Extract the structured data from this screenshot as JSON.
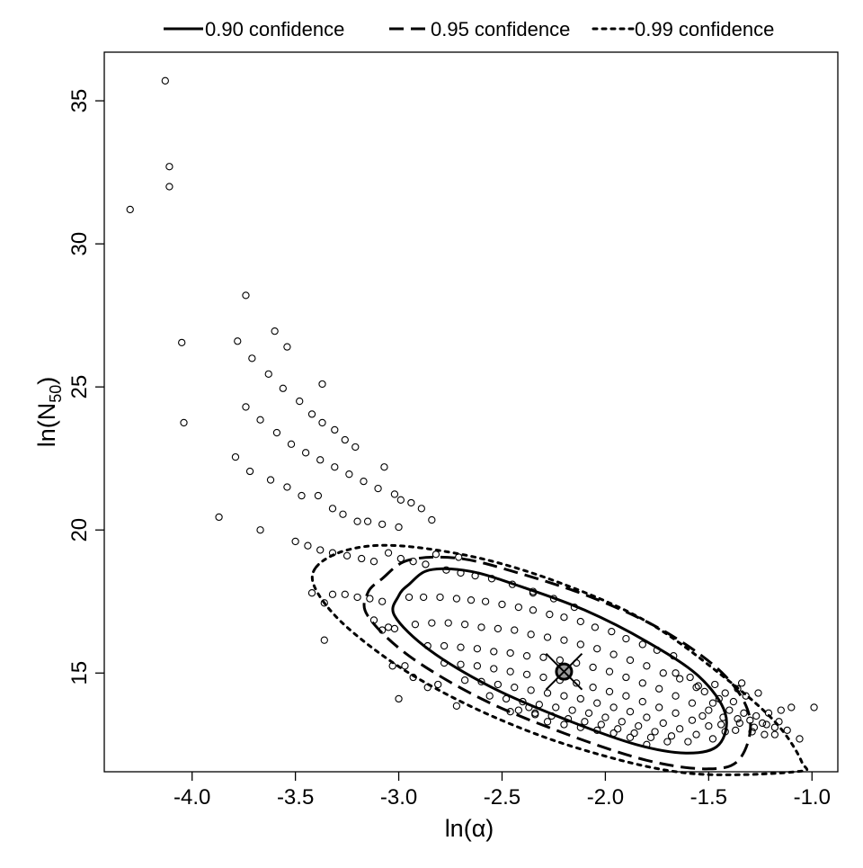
{
  "chart_data": {
    "type": "scatter",
    "x_label": "ln(α)",
    "y_label_base": "ln(N",
    "y_label_sub": "50",
    "y_label_close": ")",
    "xlim": [
      -4.425,
      -0.875
    ],
    "ylim": [
      11.55,
      36.7
    ],
    "x_ticks": [
      -4.0,
      -3.5,
      -3.0,
      -2.5,
      -2.0,
      -1.5,
      -1.0
    ],
    "x_tick_labels": [
      "-4.0",
      "-3.5",
      "-3.0",
      "-2.5",
      "-2.0",
      "-1.5",
      "-1.0"
    ],
    "y_ticks": [
      15,
      20,
      25,
      30,
      35
    ],
    "y_tick_labels": [
      "15",
      "20",
      "25",
      "30",
      "35"
    ],
    "legend_position": "top",
    "legend": [
      {
        "label": "0.90 confidence",
        "style": "solid"
      },
      {
        "label": "0.95 confidence",
        "style": "dashed"
      },
      {
        "label": "0.99 confidence",
        "style": "dotted"
      }
    ],
    "mle_point": {
      "x": -2.2,
      "y": 15.05
    },
    "confidence_regions": [
      {
        "level": 0.9,
        "style": "solid",
        "center": [
          -2.2,
          15.05
        ],
        "points": [
          [
            -2.95,
            18.1
          ],
          [
            -2.85,
            18.6
          ],
          [
            -2.65,
            18.55
          ],
          [
            -2.4,
            18.0
          ],
          [
            -2.1,
            17.2
          ],
          [
            -1.8,
            16.1
          ],
          [
            -1.55,
            14.9
          ],
          [
            -1.42,
            13.6
          ],
          [
            -1.45,
            12.5
          ],
          [
            -1.6,
            12.2
          ],
          [
            -1.85,
            12.5
          ],
          [
            -2.2,
            13.4
          ],
          [
            -2.55,
            14.5
          ],
          [
            -2.85,
            15.8
          ],
          [
            -3.02,
            17.0
          ],
          [
            -3.0,
            17.7
          ]
        ]
      },
      {
        "level": 0.95,
        "style": "dashed",
        "center": [
          -2.2,
          15.05
        ],
        "points": [
          [
            -3.08,
            18.3
          ],
          [
            -2.95,
            18.95
          ],
          [
            -2.7,
            19.0
          ],
          [
            -2.4,
            18.45
          ],
          [
            -2.05,
            17.6
          ],
          [
            -1.7,
            16.4
          ],
          [
            -1.42,
            14.9
          ],
          [
            -1.3,
            13.4
          ],
          [
            -1.35,
            12.0
          ],
          [
            -1.5,
            11.65
          ],
          [
            -1.8,
            11.95
          ],
          [
            -2.2,
            12.9
          ],
          [
            -2.6,
            14.1
          ],
          [
            -2.95,
            15.6
          ],
          [
            -3.15,
            17.0
          ],
          [
            -3.15,
            17.8
          ]
        ]
      },
      {
        "level": 0.99,
        "style": "dotted",
        "center": [
          -2.2,
          15.05
        ],
        "points": [
          [
            -3.4,
            18.7
          ],
          [
            -3.25,
            19.3
          ],
          [
            -3.0,
            19.45
          ],
          [
            -2.6,
            19.0
          ],
          [
            -2.2,
            18.1
          ],
          [
            -1.8,
            16.8
          ],
          [
            -1.45,
            15.0
          ],
          [
            -1.18,
            13.3
          ],
          [
            -1.05,
            11.9
          ],
          [
            -1.08,
            11.55
          ],
          [
            -1.6,
            11.5
          ],
          [
            -2.1,
            12.3
          ],
          [
            -2.55,
            13.5
          ],
          [
            -2.95,
            15.0
          ],
          [
            -3.25,
            16.6
          ],
          [
            -3.4,
            17.9
          ]
        ]
      }
    ],
    "scatter_points": [
      [
        -4.13,
        35.7
      ],
      [
        -4.11,
        32.7
      ],
      [
        -4.11,
        32.0
      ],
      [
        -4.3,
        31.2
      ],
      [
        -4.05,
        26.55
      ],
      [
        -4.04,
        23.75
      ],
      [
        -3.74,
        28.2
      ],
      [
        -3.78,
        26.6
      ],
      [
        -3.6,
        26.95
      ],
      [
        -3.54,
        26.4
      ],
      [
        -3.71,
        26.0
      ],
      [
        -3.63,
        25.45
      ],
      [
        -3.56,
        24.95
      ],
      [
        -3.37,
        25.1
      ],
      [
        -3.74,
        24.3
      ],
      [
        -3.48,
        24.5
      ],
      [
        -3.67,
        23.85
      ],
      [
        -3.42,
        24.05
      ],
      [
        -3.59,
        23.4
      ],
      [
        -3.37,
        23.75
      ],
      [
        -3.31,
        23.5
      ],
      [
        -3.26,
        23.15
      ],
      [
        -3.21,
        22.9
      ],
      [
        -3.52,
        23.0
      ],
      [
        -3.45,
        22.7
      ],
      [
        -3.79,
        22.55
      ],
      [
        -3.38,
        22.45
      ],
      [
        -3.31,
        22.2
      ],
      [
        -3.07,
        22.2
      ],
      [
        -3.72,
        22.05
      ],
      [
        -3.24,
        21.95
      ],
      [
        -3.62,
        21.75
      ],
      [
        -3.17,
        21.7
      ],
      [
        -3.1,
        21.45
      ],
      [
        -3.54,
        21.5
      ],
      [
        -3.02,
        21.25
      ],
      [
        -3.47,
        21.2
      ],
      [
        -2.99,
        21.05
      ],
      [
        -2.94,
        20.95
      ],
      [
        -3.39,
        21.2
      ],
      [
        -2.89,
        20.75
      ],
      [
        -3.32,
        20.75
      ],
      [
        -3.27,
        20.55
      ],
      [
        -2.84,
        20.35
      ],
      [
        -3.2,
        20.3
      ],
      [
        -3.15,
        20.3
      ],
      [
        -3.08,
        20.2
      ],
      [
        -3.0,
        20.1
      ],
      [
        -3.87,
        20.45
      ],
      [
        -3.67,
        20.0
      ],
      [
        -3.5,
        19.6
      ],
      [
        -3.44,
        19.45
      ],
      [
        -3.38,
        19.3
      ],
      [
        -3.32,
        19.2
      ],
      [
        -3.25,
        19.1
      ],
      [
        -3.18,
        19.0
      ],
      [
        -3.12,
        18.9
      ],
      [
        -3.05,
        19.2
      ],
      [
        -2.99,
        19.0
      ],
      [
        -2.93,
        18.9
      ],
      [
        -2.87,
        18.8
      ],
      [
        -2.77,
        18.6
      ],
      [
        -2.7,
        18.5
      ],
      [
        -2.63,
        18.4
      ],
      [
        -2.55,
        18.3
      ],
      [
        -2.45,
        18.1
      ],
      [
        -2.35,
        17.85
      ],
      [
        -2.25,
        17.6
      ],
      [
        -2.15,
        17.3
      ],
      [
        -2.82,
        19.15
      ],
      [
        -2.71,
        19.05
      ],
      [
        -2.35,
        17.8
      ],
      [
        -3.42,
        17.8
      ],
      [
        -3.36,
        17.45
      ],
      [
        -3.32,
        17.75
      ],
      [
        -3.26,
        17.75
      ],
      [
        -3.2,
        17.65
      ],
      [
        -3.14,
        17.6
      ],
      [
        -3.08,
        17.5
      ],
      [
        -3.12,
        16.85
      ],
      [
        -3.05,
        16.6
      ],
      [
        -3.08,
        16.5
      ],
      [
        -3.02,
        16.55
      ],
      [
        -3.36,
        16.15
      ],
      [
        -3.03,
        15.25
      ],
      [
        -2.97,
        15.25
      ],
      [
        -2.93,
        14.85
      ],
      [
        -3.0,
        14.1
      ],
      [
        -2.86,
        14.5
      ],
      [
        -2.81,
        14.6
      ],
      [
        -2.72,
        13.85
      ],
      [
        -2.46,
        13.65
      ],
      [
        -2.37,
        13.8
      ],
      [
        -2.34,
        13.55
      ],
      [
        -2.95,
        17.65
      ],
      [
        -2.88,
        17.65
      ],
      [
        -2.8,
        17.65
      ],
      [
        -2.72,
        17.6
      ],
      [
        -2.65,
        17.55
      ],
      [
        -2.58,
        17.5
      ],
      [
        -2.5,
        17.4
      ],
      [
        -2.42,
        17.3
      ],
      [
        -2.35,
        17.2
      ],
      [
        -2.27,
        17.05
      ],
      [
        -2.2,
        16.95
      ],
      [
        -2.12,
        16.8
      ],
      [
        -2.05,
        16.6
      ],
      [
        -1.97,
        16.45
      ],
      [
        -1.9,
        16.2
      ],
      [
        -1.82,
        16.0
      ],
      [
        -1.75,
        15.8
      ],
      [
        -1.67,
        15.6
      ],
      [
        -2.92,
        16.7
      ],
      [
        -2.84,
        16.75
      ],
      [
        -2.76,
        16.75
      ],
      [
        -2.68,
        16.7
      ],
      [
        -2.6,
        16.6
      ],
      [
        -2.52,
        16.55
      ],
      [
        -2.44,
        16.5
      ],
      [
        -2.36,
        16.35
      ],
      [
        -2.28,
        16.25
      ],
      [
        -2.2,
        16.15
      ],
      [
        -2.12,
        16.0
      ],
      [
        -2.04,
        15.85
      ],
      [
        -1.96,
        15.65
      ],
      [
        -1.88,
        15.45
      ],
      [
        -1.8,
        15.25
      ],
      [
        -1.72,
        15.0
      ],
      [
        -1.64,
        14.8
      ],
      [
        -1.56,
        14.5
      ],
      [
        -2.86,
        15.95
      ],
      [
        -2.78,
        15.95
      ],
      [
        -2.7,
        15.9
      ],
      [
        -2.62,
        15.85
      ],
      [
        -2.54,
        15.75
      ],
      [
        -2.46,
        15.7
      ],
      [
        -2.38,
        15.6
      ],
      [
        -2.3,
        15.55
      ],
      [
        -2.22,
        15.45
      ],
      [
        -2.14,
        15.35
      ],
      [
        -2.06,
        15.2
      ],
      [
        -1.98,
        15.05
      ],
      [
        -1.9,
        14.85
      ],
      [
        -1.82,
        14.65
      ],
      [
        -1.74,
        14.45
      ],
      [
        -1.66,
        14.2
      ],
      [
        -1.58,
        13.95
      ],
      [
        -1.5,
        13.7
      ],
      [
        -2.78,
        15.35
      ],
      [
        -2.7,
        15.3
      ],
      [
        -2.62,
        15.25
      ],
      [
        -2.54,
        15.15
      ],
      [
        -2.46,
        15.05
      ],
      [
        -2.38,
        14.95
      ],
      [
        -2.3,
        14.85
      ],
      [
        -2.22,
        14.75
      ],
      [
        -2.14,
        14.65
      ],
      [
        -2.06,
        14.5
      ],
      [
        -1.98,
        14.35
      ],
      [
        -1.9,
        14.2
      ],
      [
        -1.82,
        14.0
      ],
      [
        -1.74,
        13.8
      ],
      [
        -1.66,
        13.6
      ],
      [
        -1.58,
        13.35
      ],
      [
        -1.5,
        13.15
      ],
      [
        -1.42,
        12.95
      ],
      [
        -2.68,
        14.75
      ],
      [
        -2.6,
        14.7
      ],
      [
        -2.52,
        14.6
      ],
      [
        -2.44,
        14.5
      ],
      [
        -2.36,
        14.4
      ],
      [
        -2.28,
        14.3
      ],
      [
        -2.2,
        14.2
      ],
      [
        -2.12,
        14.1
      ],
      [
        -2.04,
        13.95
      ],
      [
        -1.96,
        13.8
      ],
      [
        -1.88,
        13.65
      ],
      [
        -1.8,
        13.45
      ],
      [
        -1.72,
        13.25
      ],
      [
        -1.64,
        13.05
      ],
      [
        -1.56,
        12.85
      ],
      [
        -1.48,
        12.7
      ],
      [
        -2.56,
        14.2
      ],
      [
        -2.48,
        14.1
      ],
      [
        -2.4,
        14.0
      ],
      [
        -2.32,
        13.9
      ],
      [
        -2.24,
        13.8
      ],
      [
        -2.16,
        13.7
      ],
      [
        -2.08,
        13.6
      ],
      [
        -2.0,
        13.45
      ],
      [
        -1.92,
        13.3
      ],
      [
        -1.84,
        13.15
      ],
      [
        -1.76,
        12.95
      ],
      [
        -1.68,
        12.8
      ],
      [
        -1.6,
        12.6
      ],
      [
        -2.42,
        13.7
      ],
      [
        -2.34,
        13.6
      ],
      [
        -2.26,
        13.5
      ],
      [
        -2.18,
        13.4
      ],
      [
        -2.1,
        13.3
      ],
      [
        -2.02,
        13.2
      ],
      [
        -1.94,
        13.05
      ],
      [
        -1.86,
        12.9
      ],
      [
        -1.78,
        12.75
      ],
      [
        -1.7,
        12.6
      ],
      [
        -2.28,
        13.3
      ],
      [
        -2.2,
        13.2
      ],
      [
        -2.12,
        13.1
      ],
      [
        -2.04,
        13.0
      ],
      [
        -1.96,
        12.9
      ],
      [
        -1.88,
        12.75
      ],
      [
        -1.8,
        12.5
      ],
      [
        -1.45,
        14.1
      ],
      [
        -1.38,
        14.0
      ],
      [
        -1.32,
        14.2
      ],
      [
        -1.26,
        14.3
      ],
      [
        -1.4,
        13.7
      ],
      [
        -1.33,
        13.6
      ],
      [
        -1.27,
        13.5
      ],
      [
        -1.21,
        13.6
      ],
      [
        -1.15,
        13.7
      ],
      [
        -1.35,
        13.25
      ],
      [
        -1.28,
        13.1
      ],
      [
        -1.22,
        13.2
      ],
      [
        -1.16,
        13.3
      ],
      [
        -1.1,
        13.8
      ],
      [
        -1.43,
        13.45
      ],
      [
        -1.36,
        13.4
      ],
      [
        -1.3,
        13.35
      ],
      [
        -1.24,
        13.25
      ],
      [
        -1.18,
        13.1
      ],
      [
        -1.12,
        13.0
      ],
      [
        -1.06,
        12.7
      ],
      [
        -1.23,
        12.85
      ],
      [
        -1.29,
        12.95
      ],
      [
        -1.37,
        13.0
      ],
      [
        -1.44,
        13.2
      ],
      [
        -1.52,
        14.35
      ],
      [
        -1.47,
        14.6
      ],
      [
        -1.59,
        14.85
      ],
      [
        -1.66,
        15.0
      ],
      [
        -1.55,
        14.55
      ],
      [
        -1.42,
        14.3
      ],
      [
        -1.36,
        14.45
      ],
      [
        -1.18,
        12.85
      ],
      [
        -0.99,
        13.8
      ],
      [
        -1.53,
        13.5
      ],
      [
        -1.48,
        13.95
      ],
      [
        -1.34,
        14.65
      ]
    ]
  }
}
